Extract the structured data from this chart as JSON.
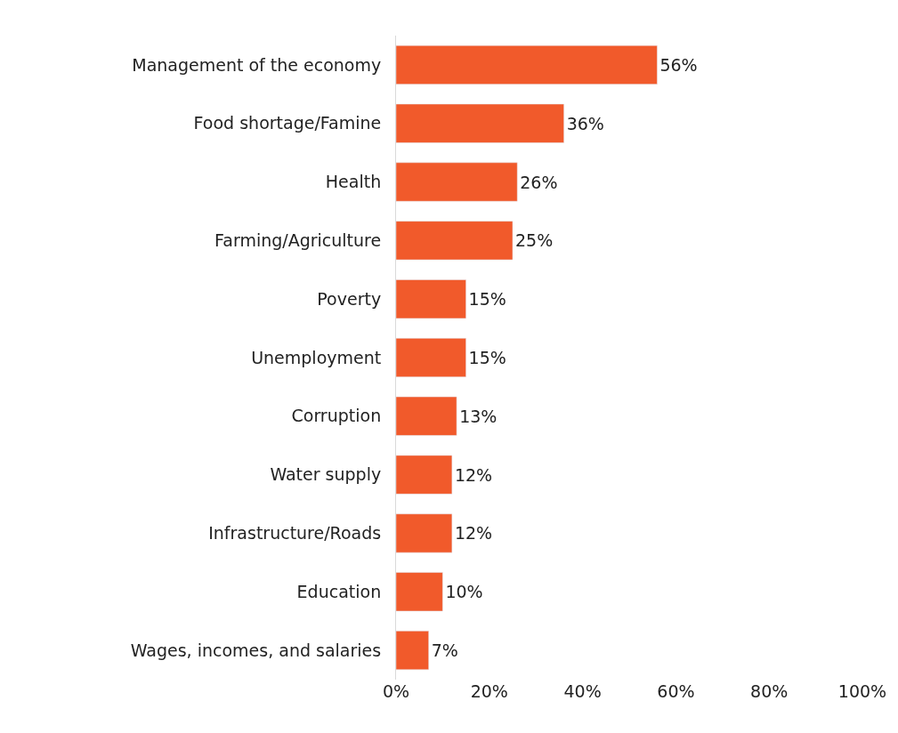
{
  "chart_data": {
    "type": "bar",
    "orientation": "horizontal",
    "categories": [
      "Management of the economy",
      "Food shortage/Famine",
      "Health",
      "Farming/Agriculture",
      "Poverty",
      "Unemployment",
      "Corruption",
      "Water supply",
      "Infrastructure/Roads",
      "Education",
      "Wages, incomes, and salaries"
    ],
    "values": [
      56,
      36,
      26,
      25,
      15,
      15,
      13,
      12,
      12,
      10,
      7
    ],
    "value_labels": [
      "56%",
      "36%",
      "26%",
      "25%",
      "15%",
      "15%",
      "13%",
      "12%",
      "12%",
      "10%",
      "7%"
    ],
    "color": "#f15a2b",
    "xlim": [
      0,
      100
    ],
    "xticks": [
      {
        "value": 0,
        "label": "0%"
      },
      {
        "value": 20,
        "label": "20%"
      },
      {
        "value": 40,
        "label": "40%"
      },
      {
        "value": 60,
        "label": "60%"
      },
      {
        "value": 80,
        "label": "80%"
      },
      {
        "value": 100,
        "label": "100%"
      }
    ],
    "legend": false
  }
}
